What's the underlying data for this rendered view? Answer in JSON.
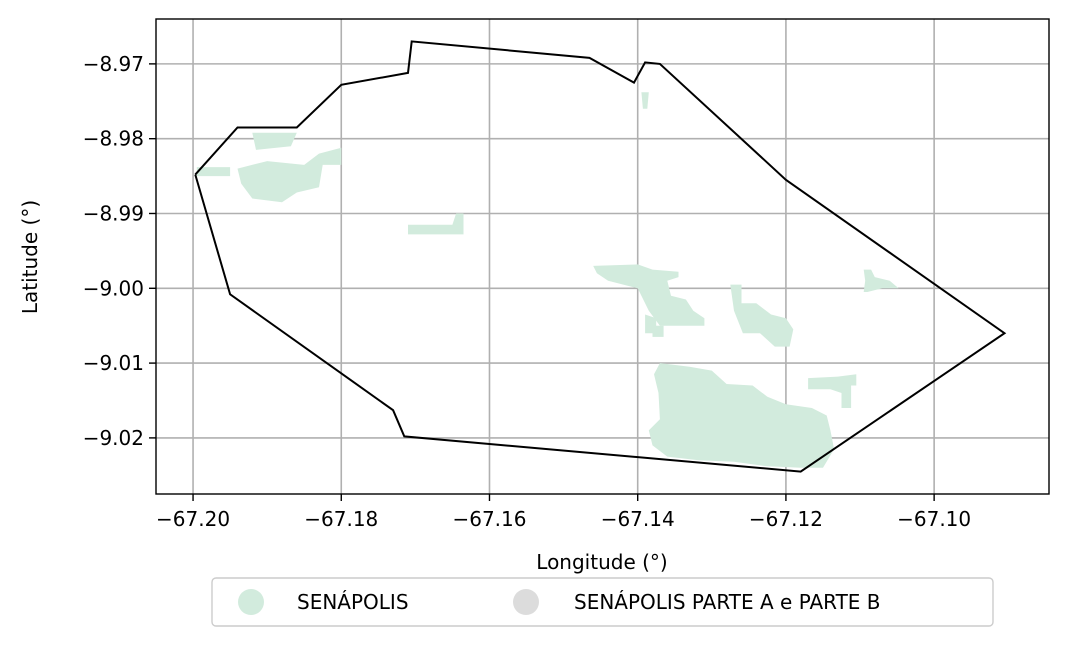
{
  "map": {
    "xlabel": "Longitude (°)",
    "ylabel": "Latitude (°)",
    "xlim": [
      -67.205,
      -67.0845
    ],
    "ylim": [
      -9.0275,
      -8.964
    ],
    "grid": true,
    "x_ticks": [
      {
        "value": -67.2,
        "label": "−67.20"
      },
      {
        "value": -67.18,
        "label": "−67.18"
      },
      {
        "value": -67.16,
        "label": "−67.16"
      },
      {
        "value": -67.14,
        "label": "−67.14"
      },
      {
        "value": -67.12,
        "label": "−67.12"
      },
      {
        "value": -67.1,
        "label": "−67.10"
      }
    ],
    "y_ticks": [
      {
        "value": -8.97,
        "label": "−8.97"
      },
      {
        "value": -8.98,
        "label": "−8.98"
      },
      {
        "value": -8.99,
        "label": "−8.99"
      },
      {
        "value": -9.0,
        "label": "−9.00"
      },
      {
        "value": -9.01,
        "label": "−9.01"
      },
      {
        "value": -9.02,
        "label": "−9.02"
      }
    ],
    "boundary_color": "#000000",
    "boundary": [
      [
        -67.1997,
        -8.9848
      ],
      [
        -67.194,
        -8.9785
      ],
      [
        -67.186,
        -8.9785
      ],
      [
        -67.18,
        -8.9728
      ],
      [
        -67.171,
        -8.9712
      ],
      [
        -67.1705,
        -8.967
      ],
      [
        -67.1465,
        -8.9692
      ],
      [
        -67.1405,
        -8.9725
      ],
      [
        -67.139,
        -8.9698
      ],
      [
        -67.137,
        -8.97
      ],
      [
        -67.12,
        -8.9855
      ],
      [
        -67.0905,
        -9.006
      ],
      [
        -67.118,
        -9.0245
      ],
      [
        -67.1715,
        -9.0198
      ],
      [
        -67.173,
        -9.0163
      ],
      [
        -67.195,
        -9.0008
      ],
      [
        -67.1997,
        -8.9848
      ]
    ],
    "regions": [
      {
        "name": "SENÁPOLIS",
        "color": "#d2ebdd",
        "polygons": [
          [
            [
              -67.192,
              -8.9792
            ],
            [
              -67.186,
              -8.9792
            ],
            [
              -67.1868,
              -8.981
            ],
            [
              -67.1915,
              -8.9815
            ]
          ],
          [
            [
              -67.1995,
              -8.9838
            ],
            [
              -67.195,
              -8.9838
            ],
            [
              -67.195,
              -8.985
            ],
            [
              -67.1995,
              -8.985
            ]
          ],
          [
            [
              -67.194,
              -8.984
            ],
            [
              -67.19,
              -8.983
            ],
            [
              -67.185,
              -8.9835
            ],
            [
              -67.183,
              -8.982
            ],
            [
              -67.18,
              -8.9812
            ],
            [
              -67.18,
              -8.9835
            ],
            [
              -67.1825,
              -8.9835
            ],
            [
              -67.183,
              -8.9865
            ],
            [
              -67.186,
              -8.9872
            ],
            [
              -67.188,
              -8.9885
            ],
            [
              -67.192,
              -8.988
            ],
            [
              -67.1935,
              -8.986
            ]
          ],
          [
            [
              -67.171,
              -8.9915
            ],
            [
              -67.165,
              -8.9915
            ],
            [
              -67.1645,
              -8.99
            ],
            [
              -67.1635,
              -8.99
            ],
            [
              -67.1635,
              -8.9928
            ],
            [
              -67.171,
              -8.9928
            ]
          ],
          [
            [
              -67.1395,
              -8.9738
            ],
            [
              -67.1385,
              -8.9738
            ],
            [
              -67.1387,
              -8.976
            ],
            [
              -67.1393,
              -8.976
            ]
          ],
          [
            [
              -67.146,
              -8.997
            ],
            [
              -67.14,
              -8.9968
            ],
            [
              -67.138,
              -8.9975
            ],
            [
              -67.1345,
              -8.9978
            ],
            [
              -67.1345,
              -8.9985
            ],
            [
              -67.136,
              -8.999
            ],
            [
              -67.1355,
              -9.001
            ],
            [
              -67.1335,
              -9.0015
            ],
            [
              -67.1325,
              -9.003
            ],
            [
              -67.131,
              -9.004
            ],
            [
              -67.131,
              -9.005
            ],
            [
              -67.137,
              -9.005
            ],
            [
              -67.1385,
              -9.003
            ],
            [
              -67.14,
              -9.0
            ],
            [
              -67.144,
              -8.999
            ],
            [
              -67.1455,
              -8.998
            ]
          ],
          [
            [
              -67.139,
              -9.0035
            ],
            [
              -67.1375,
              -9.004
            ],
            [
              -67.1375,
              -9.006
            ],
            [
              -67.139,
              -9.006
            ]
          ],
          [
            [
              -67.138,
              -9.005
            ],
            [
              -67.1365,
              -9.005
            ],
            [
              -67.1365,
              -9.0065
            ],
            [
              -67.138,
              -9.0065
            ]
          ],
          [
            [
              -67.1275,
              -8.9995
            ],
            [
              -67.126,
              -8.9995
            ],
            [
              -67.126,
              -9.002
            ],
            [
              -67.124,
              -9.002
            ],
            [
              -67.122,
              -9.0035
            ],
            [
              -67.12,
              -9.004
            ],
            [
              -67.119,
              -9.0055
            ],
            [
              -67.1195,
              -9.0078
            ],
            [
              -67.1215,
              -9.0078
            ],
            [
              -67.1235,
              -9.006
            ],
            [
              -67.1258,
              -9.006
            ],
            [
              -67.127,
              -9.003
            ]
          ],
          [
            [
              -67.1095,
              -8.9975
            ],
            [
              -67.1085,
              -8.9975
            ],
            [
              -67.108,
              -8.9985
            ],
            [
              -67.106,
              -8.999
            ],
            [
              -67.1048,
              -9.0
            ],
            [
              -67.107,
              -9.0
            ],
            [
              -67.109,
              -9.0005
            ],
            [
              -67.1095,
              -9.0005
            ],
            [
              -67.1093,
              -8.999
            ]
          ],
          [
            [
              -67.117,
              -9.012
            ],
            [
              -67.113,
              -9.0118
            ],
            [
              -67.1105,
              -9.0115
            ],
            [
              -67.1105,
              -9.013
            ],
            [
              -67.1112,
              -9.013
            ],
            [
              -67.1112,
              -9.016
            ],
            [
              -67.1125,
              -9.016
            ],
            [
              -67.1125,
              -9.014
            ],
            [
              -67.114,
              -9.0135
            ],
            [
              -67.117,
              -9.0135
            ]
          ],
          [
            [
              -67.137,
              -9.01
            ],
            [
              -67.133,
              -9.0105
            ],
            [
              -67.13,
              -9.011
            ],
            [
              -67.128,
              -9.0128
            ],
            [
              -67.1245,
              -9.013
            ],
            [
              -67.1225,
              -9.0145
            ],
            [
              -67.12,
              -9.0155
            ],
            [
              -67.1165,
              -9.016
            ],
            [
              -67.1145,
              -9.017
            ],
            [
              -67.114,
              -9.019
            ],
            [
              -67.1135,
              -9.0215
            ],
            [
              -67.115,
              -9.024
            ],
            [
              -67.118,
              -9.024
            ],
            [
              -67.1225,
              -9.0238
            ],
            [
              -67.127,
              -9.0232
            ],
            [
              -67.1318,
              -9.023
            ],
            [
              -67.136,
              -9.0225
            ],
            [
              -67.138,
              -9.021
            ],
            [
              -67.1385,
              -9.019
            ],
            [
              -67.137,
              -9.0175
            ],
            [
              -67.1372,
              -9.014
            ],
            [
              -67.1378,
              -9.0115
            ]
          ]
        ]
      },
      {
        "name": "SENÁPOLIS PARTE A e PARTE B",
        "color": "#dcdcdc",
        "polygons": []
      }
    ]
  },
  "legend": {
    "items": [
      {
        "label": "SENÁPOLIS",
        "color": "#d2ebdd"
      },
      {
        "label": "SENÁPOLIS PARTE A e PARTE B",
        "color": "#dcdcdc"
      }
    ]
  }
}
